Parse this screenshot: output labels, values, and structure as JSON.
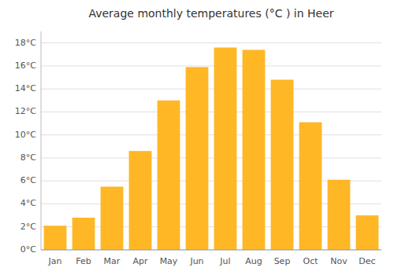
{
  "chart_data": {
    "type": "bar",
    "title": "Average monthly temperatures (°C ) in Heer",
    "categories": [
      "Jan",
      "Feb",
      "Mar",
      "Apr",
      "May",
      "Jun",
      "Jul",
      "Aug",
      "Sep",
      "Oct",
      "Nov",
      "Dec"
    ],
    "values": [
      2.1,
      2.8,
      5.5,
      8.6,
      13.0,
      15.9,
      17.6,
      17.4,
      14.8,
      11.1,
      6.1,
      3.0
    ],
    "color": "#FFB726",
    "ylim": [
      0,
      19
    ],
    "yticks": [
      {
        "value": 0,
        "label": "0°C"
      },
      {
        "value": 2,
        "label": "2°C"
      },
      {
        "value": 4,
        "label": "4°C"
      },
      {
        "value": 6,
        "label": "6°C"
      },
      {
        "value": 8,
        "label": "8°C"
      },
      {
        "value": 10,
        "label": "10°C"
      },
      {
        "value": 12,
        "label": "12°C"
      },
      {
        "value": 14,
        "label": "14°C"
      },
      {
        "value": 16,
        "label": "16°C"
      },
      {
        "value": 18,
        "label": "18°C"
      }
    ],
    "grid": true
  }
}
